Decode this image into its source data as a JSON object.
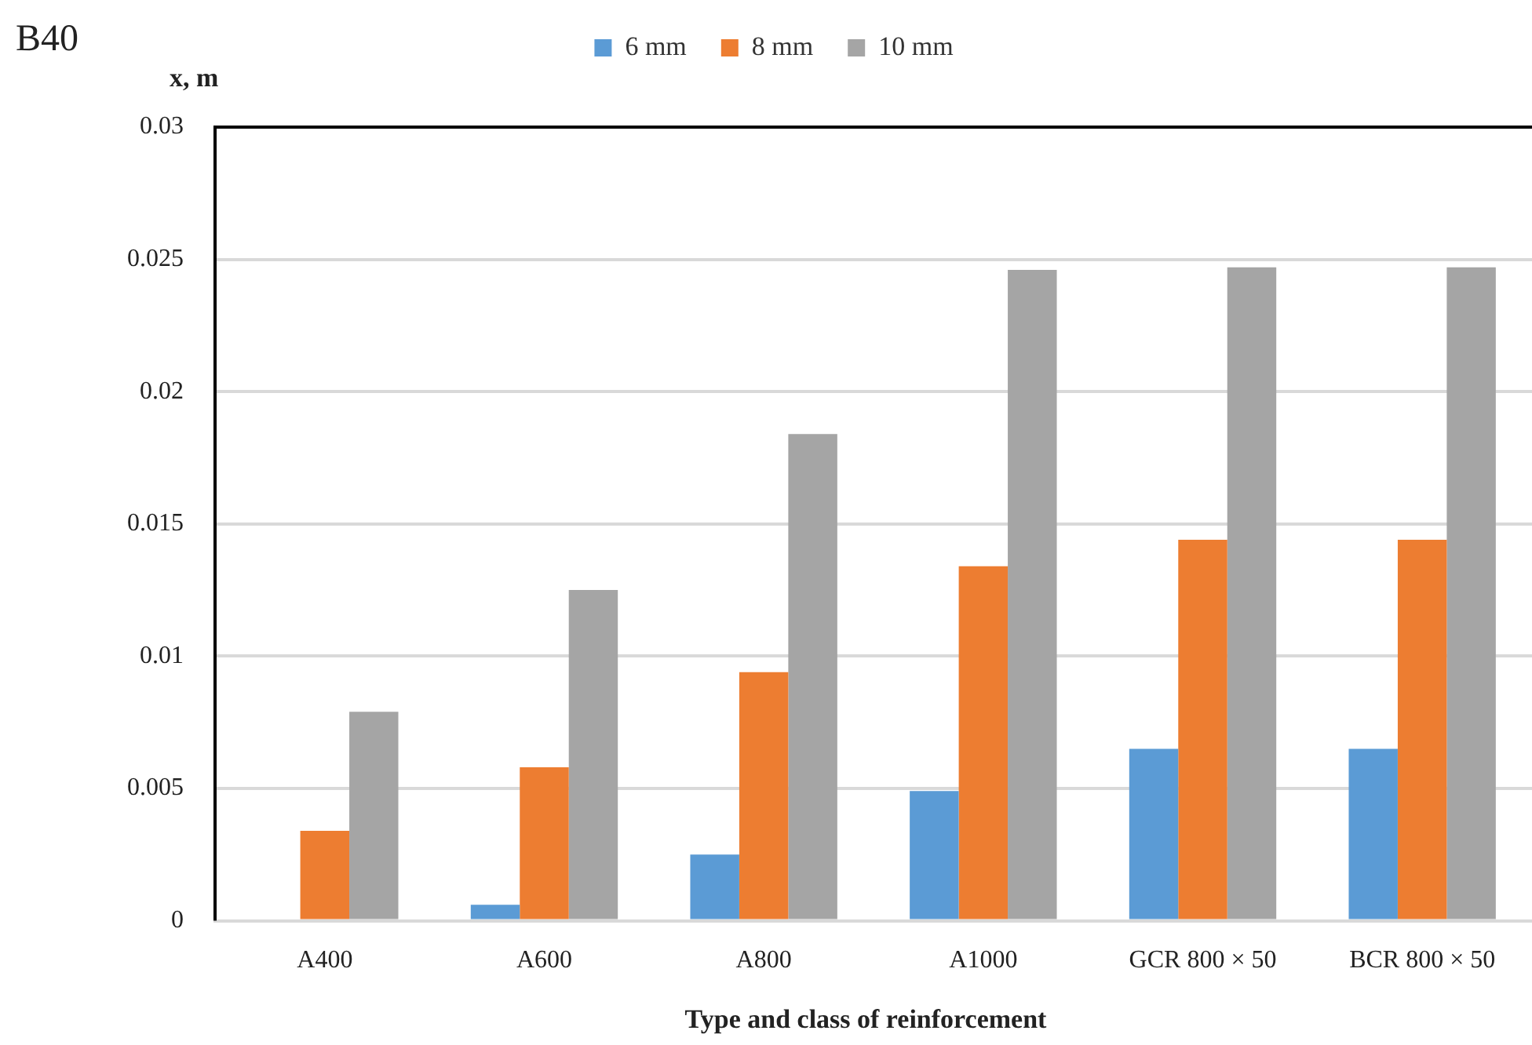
{
  "chart_data": {
    "type": "bar",
    "title": "B40",
    "ylabel": "x, m",
    "xlabel": "Type and class of reinforcement",
    "categories": [
      "A400",
      "A600",
      "A800",
      "A1000",
      "GCR 800 × 50",
      "BCR 800 × 50"
    ],
    "series": [
      {
        "name": "6 mm",
        "color": "#5b9bd5",
        "values": [
          0,
          0.0006,
          0.0025,
          0.0049,
          0.0065,
          0.0065
        ]
      },
      {
        "name": "8 mm",
        "color": "#ed7d31",
        "values": [
          0.0034,
          0.0058,
          0.0094,
          0.0134,
          0.0144,
          0.0144
        ]
      },
      {
        "name": "10 mm",
        "color": "#a5a5a5",
        "values": [
          0.0079,
          0.0125,
          0.0184,
          0.0246,
          0.0247,
          0.0247
        ]
      }
    ],
    "ylim": [
      0,
      0.03
    ],
    "yticks": [
      0,
      0.005,
      0.01,
      0.015,
      0.02,
      0.025,
      0.03
    ],
    "grid": "y",
    "legend": "top"
  }
}
